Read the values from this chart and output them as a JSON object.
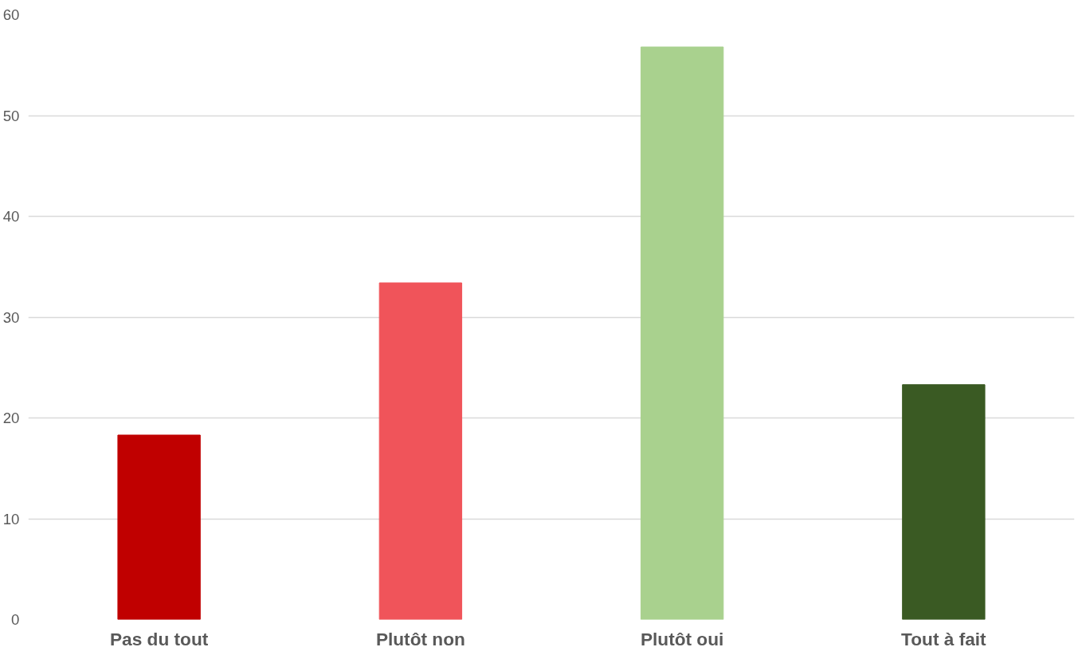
{
  "chart_data": {
    "type": "bar",
    "categories": [
      "Pas du tout",
      "Plutôt non",
      "Plutôt oui",
      "Tout à fait"
    ],
    "values": [
      18.3,
      33.4,
      56.8,
      23.3
    ],
    "colors": [
      "#c00000",
      "#f0545a",
      "#a9d18e",
      "#3a5a23"
    ],
    "ylim": [
      0,
      60
    ],
    "yticks": [
      0,
      10,
      20,
      30,
      40,
      50,
      60
    ],
    "grid": "y"
  }
}
